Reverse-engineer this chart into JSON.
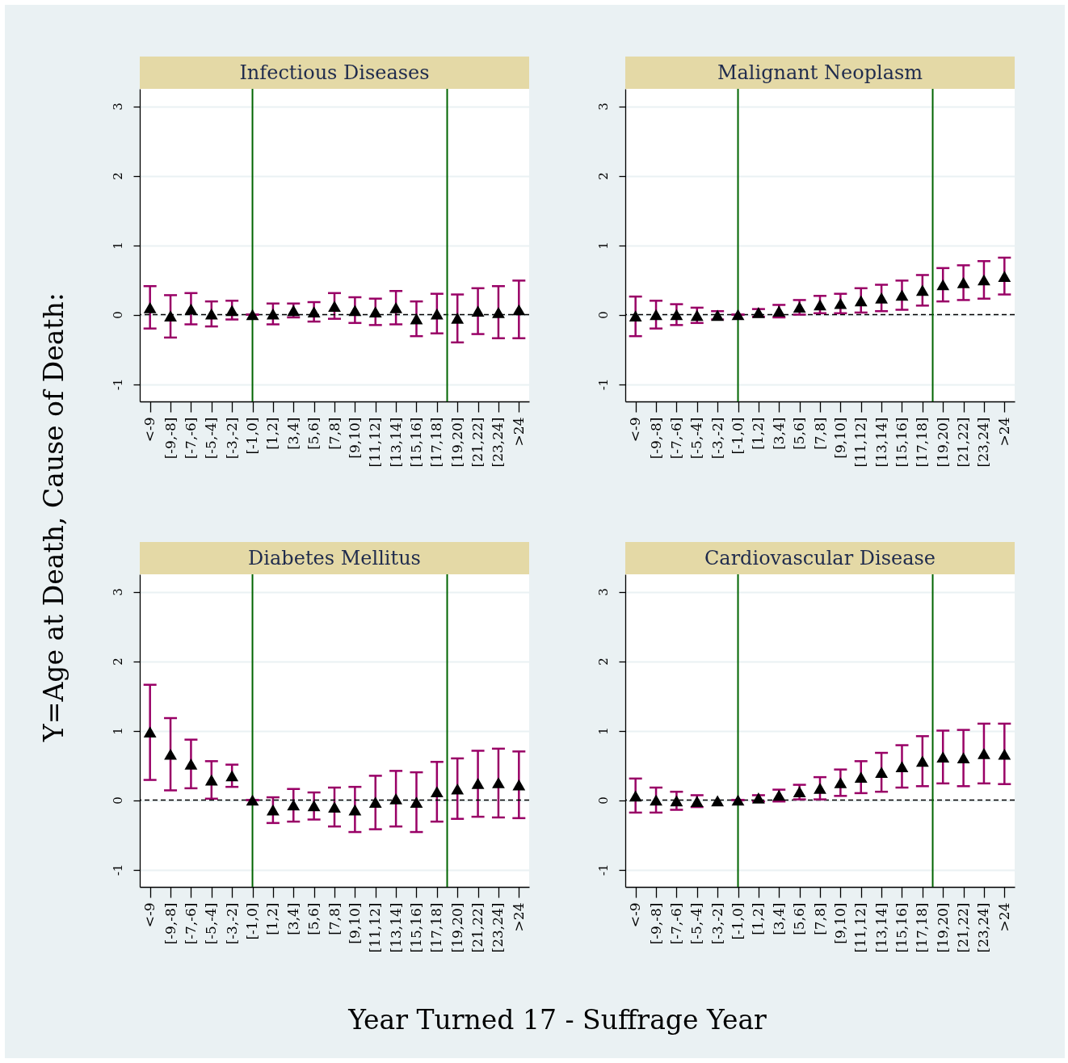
{
  "chart_data": [
    {
      "type": "scatter",
      "title": "Infectious Diseases",
      "ylabel": "Y=Age at Death, Cause of Death:",
      "categories": [
        "<-9",
        "[-9,-8]",
        "[-7,-6]",
        "[-5,-4]",
        "[-3,-2]",
        "[-1,0]",
        "[1,2]",
        "[3,4]",
        "[5,6]",
        "[7,8]",
        "[9,10]",
        "[11,12]",
        "[13,14]",
        "[15,16]",
        "[17,18]",
        "[19,20]",
        "[21,22]",
        "[23,24]",
        ">24"
      ],
      "ylim": [
        -1.25,
        3.25
      ],
      "yticks": [
        -1,
        0,
        1,
        2,
        3
      ],
      "grid": "y",
      "marker": "triangle",
      "series": [
        {
          "color": "#000000",
          "values": [
            0.1,
            -0.02,
            0.08,
            0.01,
            0.06,
            0,
            0.01,
            0.06,
            0.04,
            0.12,
            0.06,
            0.04,
            0.1,
            -0.06,
            0.01,
            -0.05,
            0.05,
            0.03,
            0.07
          ],
          "errors": [
            [
              -0.2,
              0.41
            ],
            [
              -0.33,
              0.28
            ],
            [
              -0.14,
              0.31
            ],
            [
              -0.17,
              0.19
            ],
            [
              -0.07,
              0.2
            ],
            [
              0,
              0
            ],
            [
              -0.14,
              0.16
            ],
            [
              -0.04,
              0.16
            ],
            [
              -0.1,
              0.18
            ],
            [
              -0.06,
              0.31
            ],
            [
              -0.12,
              0.25
            ],
            [
              -0.15,
              0.23
            ],
            [
              -0.14,
              0.34
            ],
            [
              -0.31,
              0.19
            ],
            [
              -0.27,
              0.3
            ],
            [
              -0.4,
              0.29
            ],
            [
              -0.28,
              0.38
            ],
            [
              -0.34,
              0.41
            ],
            [
              -0.34,
              0.49
            ]
          ]
        }
      ],
      "ref_lines": [
        {
          "axis": "x",
          "value": "[-1,0]",
          "color": "#006400"
        },
        {
          "axis": "y",
          "value": 0,
          "color": "#000000",
          "line_style": "dashed"
        }
      ]
    },
    {
      "type": "scatter",
      "title": "Malignant Neoplasm",
      "categories": [
        "<-9",
        "[-9,-8]",
        "[-7,-6]",
        "[-5,-4]",
        "[-3,-2]",
        "[-1,0]",
        "[1,2]",
        "[3,4]",
        "[5,6]",
        "[7,8]",
        "[9,10]",
        "[11,12]",
        "[13,14]",
        "[15,16]",
        "[17,18]",
        "[19,20]",
        "[21,22]",
        "[23,24]",
        ">24"
      ],
      "ylim": [
        -1.25,
        3.25
      ],
      "yticks": [
        -1,
        0,
        1,
        2,
        3
      ],
      "grid": "y",
      "marker": "triangle",
      "series": [
        {
          "color": "#000000",
          "values": [
            -0.02,
            0,
            0,
            -0.01,
            -0.01,
            0,
            0.03,
            0.05,
            0.11,
            0.14,
            0.16,
            0.2,
            0.24,
            0.28,
            0.35,
            0.43,
            0.46,
            0.5,
            0.55
          ],
          "errors": [
            [
              -0.31,
              0.26
            ],
            [
              -0.2,
              0.2
            ],
            [
              -0.15,
              0.15
            ],
            [
              -0.12,
              0.1
            ],
            [
              -0.07,
              0.05
            ],
            [
              0,
              0
            ],
            [
              -0.03,
              0.08
            ],
            [
              -0.04,
              0.14
            ],
            [
              0,
              0.21
            ],
            [
              0.02,
              0.27
            ],
            [
              0.02,
              0.3
            ],
            [
              0.03,
              0.38
            ],
            [
              0.05,
              0.43
            ],
            [
              0.07,
              0.49
            ],
            [
              0.13,
              0.57
            ],
            [
              0.19,
              0.67
            ],
            [
              0.21,
              0.71
            ],
            [
              0.23,
              0.77
            ],
            [
              0.29,
              0.82
            ]
          ]
        }
      ],
      "ref_lines": [
        {
          "axis": "x",
          "value": "[-1,0]",
          "color": "#006400"
        },
        {
          "axis": "y",
          "value": 0,
          "color": "#000000",
          "line_style": "dashed"
        }
      ]
    },
    {
      "type": "scatter",
      "title": "Diabetes Mellitus",
      "xlabel": "Year Turned 17 - Suffrage Year",
      "categories": [
        "<-9",
        "[-9,-8]",
        "[-7,-6]",
        "[-5,-4]",
        "[-3,-2]",
        "[-1,0]",
        "[1,2]",
        "[3,4]",
        "[5,6]",
        "[7,8]",
        "[9,10]",
        "[11,12]",
        "[13,14]",
        "[15,16]",
        "[17,18]",
        "[19,20]",
        "[21,22]",
        "[23,24]",
        ">24"
      ],
      "ylim": [
        -1.25,
        3.25
      ],
      "yticks": [
        -1,
        0,
        1,
        2,
        3
      ],
      "grid": "y",
      "marker": "triangle",
      "series": [
        {
          "color": "#000000",
          "values": [
            0.98,
            0.66,
            0.52,
            0.29,
            0.35,
            0,
            -0.14,
            -0.07,
            -0.08,
            -0.1,
            -0.14,
            -0.03,
            0.02,
            -0.03,
            0.12,
            0.16,
            0.24,
            0.25,
            0.22
          ],
          "errors": [
            [
              0.29,
              1.66
            ],
            [
              0.14,
              1.18
            ],
            [
              0.17,
              0.87
            ],
            [
              0.02,
              0.56
            ],
            [
              0.19,
              0.51
            ],
            [
              0,
              0
            ],
            [
              -0.33,
              0.04
            ],
            [
              -0.31,
              0.16
            ],
            [
              -0.28,
              0.11
            ],
            [
              -0.38,
              0.18
            ],
            [
              -0.46,
              0.19
            ],
            [
              -0.42,
              0.35
            ],
            [
              -0.38,
              0.42
            ],
            [
              -0.46,
              0.4
            ],
            [
              -0.31,
              0.55
            ],
            [
              -0.27,
              0.6
            ],
            [
              -0.24,
              0.71
            ],
            [
              -0.25,
              0.74
            ],
            [
              -0.26,
              0.7
            ]
          ]
        }
      ],
      "ref_lines": [
        {
          "axis": "x",
          "value": "[-1,0]",
          "color": "#006400"
        },
        {
          "axis": "y",
          "value": 0,
          "color": "#000000",
          "line_style": "dashed"
        }
      ]
    },
    {
      "type": "scatter",
      "title": "Cardiovascular Disease",
      "categories": [
        "<-9",
        "[-9,-8]",
        "[-7,-6]",
        "[-5,-4]",
        "[-3,-2]",
        "[-1,0]",
        "[1,2]",
        "[3,4]",
        "[5,6]",
        "[7,8]",
        "[9,10]",
        "[11,12]",
        "[13,14]",
        "[15,16]",
        "[17,18]",
        "[19,20]",
        "[21,22]",
        "[23,24]",
        ">24"
      ],
      "ylim": [
        -1.25,
        3.25
      ],
      "yticks": [
        -1,
        0,
        1,
        2,
        3
      ],
      "grid": "y",
      "marker": "triangle",
      "series": [
        {
          "color": "#000000",
          "values": [
            0.06,
            0,
            -0.01,
            -0.02,
            -0.01,
            0,
            0.03,
            0.07,
            0.12,
            0.17,
            0.25,
            0.33,
            0.4,
            0.48,
            0.56,
            0.62,
            0.61,
            0.67,
            0.66
          ],
          "errors": [
            [
              -0.18,
              0.31
            ],
            [
              -0.18,
              0.18
            ],
            [
              -0.14,
              0.12
            ],
            [
              -0.1,
              0.07
            ],
            null,
            [
              0,
              0
            ],
            [
              -0.02,
              0.07
            ],
            [
              -0.02,
              0.15
            ],
            [
              0.01,
              0.22
            ],
            [
              0.01,
              0.33
            ],
            [
              0.06,
              0.44
            ],
            [
              0.1,
              0.56
            ],
            [
              0.12,
              0.68
            ],
            [
              0.18,
              0.79
            ],
            [
              0.2,
              0.92
            ],
            [
              0.24,
              1.0
            ],
            [
              0.2,
              1.01
            ],
            [
              0.24,
              1.1
            ],
            [
              0.23,
              1.1
            ]
          ]
        }
      ],
      "ref_lines": [
        {
          "axis": "x",
          "value": "[-1,0]",
          "color": "#006400"
        },
        {
          "axis": "y",
          "value": 0,
          "color": "#000000",
          "line_style": "dashed"
        }
      ]
    }
  ]
}
